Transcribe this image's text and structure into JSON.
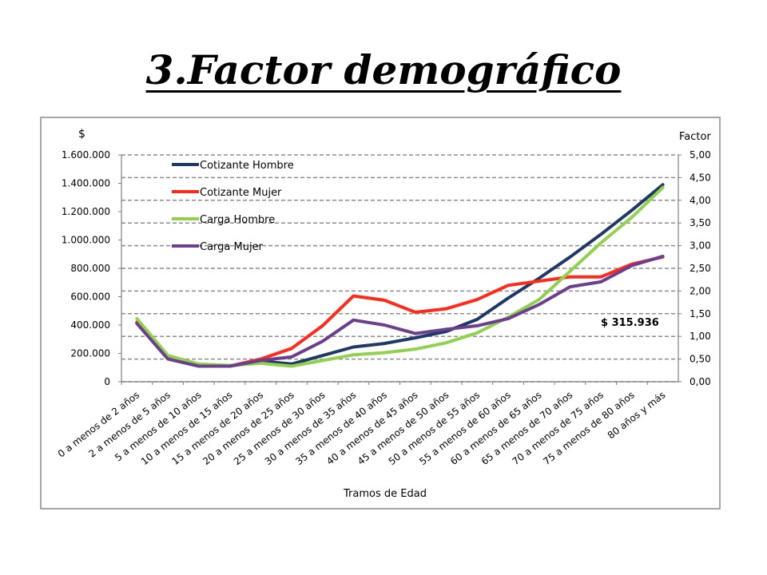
{
  "slide": {
    "title": "3.Factor demográfico"
  },
  "chart_data": {
    "type": "line",
    "title": "",
    "xlabel": "Tramos de Edad",
    "ylabel_left": "$",
    "ylabel_right": "Factor",
    "y_left_ticks": [
      "0",
      "200.000",
      "400.000",
      "600.000",
      "800.000",
      "1.000.000",
      "1.200.000",
      "1.400.000",
      "1.600.000"
    ],
    "y_right_ticks": [
      "0,00",
      "0,50",
      "1,00",
      "1,50",
      "2,00",
      "2,50",
      "3,00",
      "3,50",
      "4,00",
      "4,50",
      "5,00"
    ],
    "ylim_left": [
      0,
      1600000
    ],
    "ylim_right": [
      0,
      5
    ],
    "grid": true,
    "legend_position": "top-left",
    "annotation": "$ 315.936",
    "categories": [
      "0 a menos de 2 años",
      "2 a menos de 5 años",
      "5 a menos de 10 años",
      "10 a menos de 15 años",
      "15 a menos de 20 años",
      "20 a menos de 25 años",
      "25 a menos de 30 años",
      "30 a menos de 35 años",
      "35 a menos de 40 años",
      "40 a menos de 45 años",
      "45 a menos de 50 años",
      "50 a menos de 55 años",
      "55 a menos de 60 años",
      "60 a menos de 65 años",
      "65 a menos de 70 años",
      "70 a menos de 75 años",
      "75 a menos de 80 años",
      "80 años y más"
    ],
    "series": [
      {
        "name": "Cotizante Hombre",
        "color": "#1f3864",
        "values": [
          420000,
          165000,
          120000,
          110000,
          145000,
          125000,
          185000,
          245000,
          270000,
          310000,
          355000,
          440000,
          590000,
          730000,
          880000,
          1040000,
          1210000,
          1390000
        ]
      },
      {
        "name": "Cotizante Mujer",
        "color": "#ff2a1a",
        "values": [
          420000,
          165000,
          120000,
          110000,
          160000,
          235000,
          395000,
          605000,
          575000,
          490000,
          515000,
          580000,
          680000,
          710000,
          740000,
          740000,
          830000,
          880000
        ]
      },
      {
        "name": "Carga Hombre",
        "color": "#92d050",
        "values": [
          445000,
          185000,
          125000,
          115000,
          130000,
          110000,
          150000,
          190000,
          205000,
          230000,
          275000,
          345000,
          455000,
          580000,
          780000,
          980000,
          1160000,
          1370000
        ]
      },
      {
        "name": "Carga Mujer",
        "color": "#6b3e8e",
        "values": [
          410000,
          160000,
          110000,
          110000,
          150000,
          175000,
          285000,
          435000,
          400000,
          340000,
          370000,
          395000,
          445000,
          545000,
          670000,
          705000,
          820000,
          885000
        ]
      }
    ]
  }
}
